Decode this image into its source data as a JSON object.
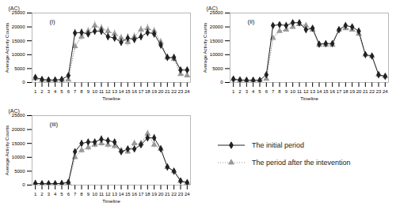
{
  "chart_data": [
    {
      "type": "line",
      "title": "(i)",
      "annotations": [
        "(AC)"
      ],
      "xlabel": "Timeline",
      "ylabel": "Average Activity Counts",
      "x": [
        1,
        2,
        3,
        4,
        5,
        6,
        7,
        8,
        9,
        10,
        11,
        12,
        13,
        14,
        15,
        16,
        17,
        18,
        19,
        20,
        21,
        22,
        23,
        24
      ],
      "xlim": [
        0.5,
        24.5
      ],
      "xticks": [
        1,
        2,
        3,
        4,
        5,
        6,
        7,
        8,
        9,
        10,
        11,
        12,
        13,
        14,
        15,
        16,
        17,
        18,
        19,
        20,
        21,
        22,
        23,
        24
      ],
      "ylim": [
        0,
        25000
      ],
      "yticks": [
        0,
        5000,
        10000,
        15000,
        20000,
        25000
      ],
      "grid": false,
      "series": [
        {
          "name": "The initial period",
          "color": "#222222",
          "marker": "diamond",
          "line_style": "solid",
          "values": [
            1800,
            1100,
            900,
            900,
            1100,
            2500,
            17800,
            18000,
            17500,
            18500,
            18500,
            16500,
            16000,
            14500,
            16000,
            15500,
            16500,
            18000,
            17500,
            13500,
            9000,
            9000,
            4500,
            4500
          ],
          "errors": [
            250,
            200,
            150,
            150,
            200,
            400,
            1300,
            1200,
            1200,
            1500,
            1500,
            1400,
            1400,
            1400,
            1500,
            1400,
            1400,
            1400,
            1400,
            1400,
            1200,
            1200,
            800,
            700
          ]
        },
        {
          "name": "The period after the intevention",
          "color": "#999999",
          "marker": "triangle",
          "line_style": "dotted",
          "values": [
            1500,
            900,
            800,
            800,
            900,
            1000,
            13000,
            16500,
            18500,
            20500,
            19500,
            18500,
            17500,
            16000,
            14500,
            16500,
            19000,
            19500,
            18500,
            14500,
            9000,
            8500,
            3000,
            2500
          ],
          "errors": [
            250,
            180,
            150,
            150,
            180,
            250,
            1400,
            1300,
            1300,
            1600,
            1500,
            1500,
            1500,
            1400,
            1400,
            1400,
            1400,
            1500,
            1400,
            1400,
            1200,
            1200,
            600,
            500
          ]
        }
      ]
    },
    {
      "type": "line",
      "title": "(ii)",
      "annotations": [
        "(AC)"
      ],
      "xlabel": "Timeline",
      "ylabel": "Average Activity Counts",
      "x": [
        1,
        2,
        3,
        4,
        5,
        6,
        7,
        8,
        9,
        10,
        11,
        12,
        13,
        14,
        15,
        16,
        17,
        18,
        19,
        20,
        21,
        22,
        23,
        24
      ],
      "xlim": [
        0.5,
        24.5
      ],
      "xticks": [
        1,
        2,
        3,
        4,
        5,
        6,
        7,
        8,
        9,
        10,
        11,
        12,
        13,
        14,
        15,
        16,
        17,
        18,
        19,
        20,
        21,
        22,
        23,
        24
      ],
      "ylim": [
        0,
        25000
      ],
      "yticks": [
        0,
        5000,
        10000,
        15000,
        20000,
        25000
      ],
      "grid": false,
      "series": [
        {
          "name": "The initial period",
          "color": "#222222",
          "marker": "diamond",
          "line_style": "solid",
          "values": [
            1200,
            900,
            800,
            800,
            800,
            2800,
            20500,
            20800,
            20500,
            21500,
            21500,
            19000,
            19500,
            13800,
            14000,
            14000,
            19000,
            20500,
            20000,
            18500,
            10000,
            9500,
            2800,
            2200
          ],
          "errors": [
            180,
            130,
            120,
            120,
            130,
            300,
            800,
            800,
            800,
            900,
            900,
            900,
            900,
            800,
            800,
            800,
            800,
            800,
            800,
            800,
            600,
            600,
            350,
            300
          ]
        },
        {
          "name": "The period after the intevention",
          "color": "#999999",
          "marker": "triangle",
          "line_style": "dotted",
          "values": [
            1200,
            900,
            800,
            800,
            700,
            1300,
            16000,
            18500,
            19000,
            20000,
            21000,
            20500,
            19000,
            13500,
            13500,
            13500,
            19000,
            19500,
            19000,
            17500,
            10000,
            9500,
            2800,
            2200
          ],
          "errors": [
            180,
            130,
            120,
            120,
            130,
            250,
            800,
            800,
            800,
            900,
            900,
            900,
            900,
            800,
            800,
            800,
            800,
            800,
            800,
            800,
            600,
            600,
            350,
            300
          ]
        }
      ]
    },
    {
      "type": "line",
      "title": "(iii)",
      "annotations": [
        "(AC)"
      ],
      "xlabel": "Timeline",
      "ylabel": "Average Activity Counts",
      "x": [
        1,
        2,
        3,
        4,
        5,
        6,
        7,
        8,
        9,
        10,
        11,
        12,
        13,
        14,
        15,
        16,
        17,
        18,
        19,
        20,
        21,
        22,
        23,
        24
      ],
      "xlim": [
        0.5,
        24.5
      ],
      "xticks": [
        1,
        2,
        3,
        4,
        5,
        6,
        7,
        8,
        9,
        10,
        11,
        12,
        13,
        14,
        15,
        16,
        17,
        18,
        19,
        20,
        21,
        22,
        23,
        24
      ],
      "ylim": [
        0,
        25000
      ],
      "yticks": [
        0,
        5000,
        10000,
        15000,
        20000,
        25000
      ],
      "grid": false,
      "series": [
        {
          "name": "The initial period",
          "color": "#222222",
          "marker": "diamond",
          "line_style": "solid",
          "values": [
            600,
            500,
            500,
            500,
            600,
            1000,
            12000,
            15000,
            15500,
            15500,
            16500,
            16000,
            15500,
            12000,
            13000,
            13000,
            14500,
            17000,
            17000,
            13000,
            6500,
            5000,
            1500,
            900
          ],
          "errors": [
            120,
            100,
            100,
            100,
            120,
            200,
            900,
            1100,
            1100,
            1100,
            1200,
            1100,
            1100,
            1000,
            1000,
            1000,
            1100,
            1200,
            1200,
            1100,
            700,
            600,
            300,
            200
          ]
        },
        {
          "name": "The period after the intevention",
          "color": "#999999",
          "marker": "triangle",
          "line_style": "dotted",
          "values": [
            600,
            500,
            500,
            500,
            600,
            800,
            10000,
            12500,
            13500,
            14500,
            15000,
            14500,
            14000,
            12500,
            12000,
            15000,
            15000,
            18500,
            14500,
            13000,
            6500,
            5000,
            1500,
            800
          ],
          "errors": [
            120,
            100,
            100,
            100,
            120,
            200,
            900,
            1100,
            1100,
            1100,
            1100,
            1100,
            1100,
            1000,
            1000,
            1100,
            1100,
            1300,
            1100,
            1100,
            700,
            600,
            300,
            200
          ]
        }
      ]
    }
  ]
}
